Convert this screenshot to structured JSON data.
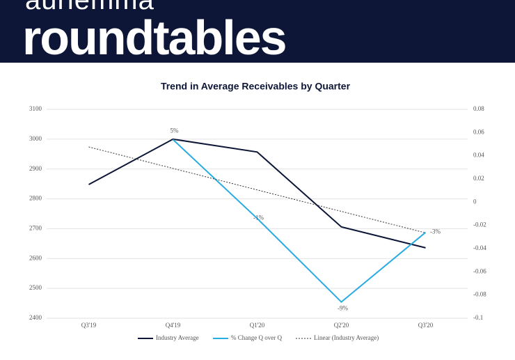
{
  "header": {
    "brand": "auriemma",
    "title": "roundtables"
  },
  "chart_data": {
    "type": "line",
    "title": "Trend in Average Receivables by Quarter",
    "categories": [
      "Q3'19",
      "Q4'19",
      "Q1'20",
      "Q2'20",
      "Q3'20"
    ],
    "series": [
      {
        "name": "Industry Average",
        "color": "#0d1637",
        "values": [
          2848,
          3000,
          2957,
          2706,
          2636
        ]
      },
      {
        "name": "% Change Q over Q",
        "color": "#29abe2",
        "axis": "y2",
        "values": [
          null,
          0.054,
          -0.014,
          -0.086,
          -0.026
        ],
        "value_labels": [
          null,
          "5%",
          "-1%",
          "-9%",
          "-3%"
        ]
      },
      {
        "name": "Linear (Industry Average)",
        "color": "#333333",
        "dashed": true,
        "values": [
          2974,
          2902,
          2830,
          2758,
          2686
        ]
      }
    ],
    "ylim": [
      2400,
      3100
    ],
    "yticks": [
      2400,
      2500,
      2600,
      2700,
      2800,
      2900,
      3000,
      3100
    ],
    "y2lim": [
      -0.1,
      0.08
    ],
    "y2ticks": [
      -0.1,
      -0.08,
      -0.06,
      -0.04,
      -0.02,
      0,
      0.02,
      0.04,
      0.06,
      0.08
    ],
    "grid": true,
    "legend": "bottom"
  }
}
